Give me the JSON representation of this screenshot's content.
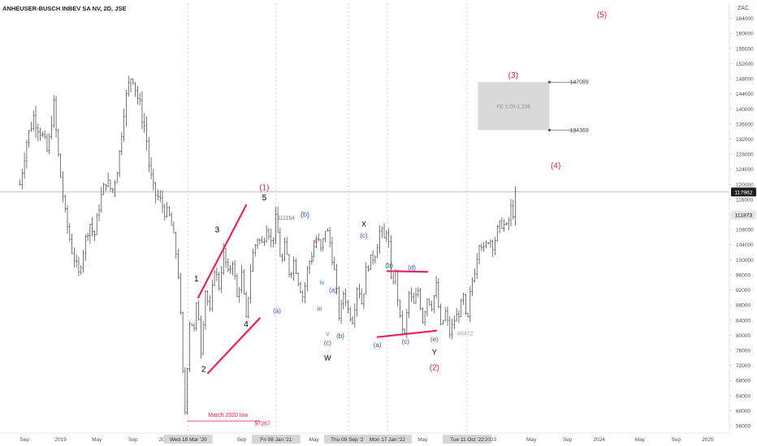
{
  "header": {
    "symbol_line": "ANHEUSER-BUSCH INBEV SA NV, 2D, JSE"
  },
  "y_axis": {
    "currency": "ZAC",
    "ticks": [
      56000,
      60000,
      64000,
      68000,
      72000,
      76000,
      80000,
      84000,
      88000,
      92000,
      96000,
      100000,
      104000,
      108000,
      112000,
      116000,
      120000,
      124000,
      128000,
      132000,
      136000,
      140000,
      144000,
      148000,
      152000,
      156000,
      160000,
      164000
    ]
  },
  "price_tags": {
    "last": {
      "label": "117962",
      "value": 117962
    },
    "secondary": {
      "label": "111873",
      "value": 111873
    }
  },
  "x_axis": {
    "labels": [
      {
        "text": "Sep",
        "t": 0.5,
        "highlight": false
      },
      {
        "text": "2019",
        "t": 4.5,
        "highlight": false
      },
      {
        "text": "May",
        "t": 8.5,
        "highlight": false
      },
      {
        "text": "Sep",
        "t": 12.5,
        "highlight": false
      },
      {
        "text": "2020",
        "t": 16.0,
        "highlight": false
      },
      {
        "text": "Wed 18 Mar '20",
        "t": 18.6,
        "highlight": true
      },
      {
        "text": "Sep",
        "t": 24.5,
        "highlight": false
      },
      {
        "text": "Fri 08 Jan '21",
        "t": 28.3,
        "highlight": true
      },
      {
        "text": "May",
        "t": 32.5,
        "highlight": false
      },
      {
        "text": "Thu 09 Sep '21",
        "t": 36.3,
        "highlight": true
      },
      {
        "text": "Mon 17 Jan '22",
        "t": 40.6,
        "highlight": true
      },
      {
        "text": "May",
        "t": 44.5,
        "highlight": false
      },
      {
        "text": "Tue 11 Oct '22",
        "t": 49.4,
        "highlight": true
      },
      {
        "text": "2023",
        "t": 52.0,
        "highlight": false
      },
      {
        "text": "May",
        "t": 56.5,
        "highlight": false
      },
      {
        "text": "Sep",
        "t": 60.5,
        "highlight": false
      },
      {
        "text": "2024",
        "t": 64.0,
        "highlight": false
      },
      {
        "text": "May",
        "t": 68.5,
        "highlight": false
      },
      {
        "text": "Sep",
        "t": 72.5,
        "highlight": false
      },
      {
        "text": "2025",
        "t": 76.0,
        "highlight": false
      }
    ]
  },
  "chart_data": {
    "type": "line",
    "title": "ANHEUSER-BUSCH INBEV SA NV, 2D, JSE",
    "x_unit": "months since Sep 2018 (axis labels: Sep, 2019, May, Sep, 2020 ... 2025)",
    "y_unit": "ZAC",
    "ylim": [
      54500,
      168000
    ],
    "grid": false,
    "series": [
      {
        "name": "price",
        "x": [
          0,
          0.7,
          1.5,
          2.3,
          3.1,
          3.7,
          4.3,
          5.0,
          5.7,
          6.5,
          7.1,
          7.7,
          8.2,
          8.8,
          9.5,
          10.2,
          10.9,
          11.5,
          12.0,
          12.4,
          12.9,
          13.3,
          13.9,
          14.3,
          14.8,
          15.4,
          16.0,
          16.6,
          17.2,
          17.6,
          17.9,
          18.2,
          18.5,
          18.8,
          19.2,
          19.6,
          20.0,
          20.5,
          21.0,
          21.5,
          22.0,
          22.5,
          23.0,
          23.5,
          24.0,
          24.5,
          25.0,
          25.6,
          26.2,
          26.8,
          27.3,
          27.8,
          28.3,
          28.6,
          28.9,
          29.3,
          29.8,
          30.3,
          30.8,
          31.3,
          31.8,
          32.3,
          32.8,
          33.3,
          33.8,
          34.3,
          34.8,
          35.3,
          35.8,
          36.3,
          36.8,
          37.3,
          37.8,
          38.3,
          38.8,
          39.3,
          39.8,
          40.3,
          40.6,
          41.0,
          41.5,
          42.0,
          42.5,
          43.0,
          43.5,
          44.0,
          44.5,
          45.0,
          45.5,
          46.0,
          46.5,
          47.0,
          47.5,
          48.0,
          48.5,
          49.0,
          49.4,
          49.8,
          50.3,
          50.8,
          51.3,
          51.8,
          52.3,
          52.8,
          53.3,
          53.8,
          54.3,
          54.6,
          54.8
        ],
        "values": [
          120000,
          131000,
          138000,
          134000,
          128000,
          142000,
          126000,
          112000,
          103000,
          96000,
          104000,
          110000,
          106000,
          115000,
          121000,
          118000,
          126000,
          140000,
          146000,
          150000,
          144000,
          140000,
          134000,
          124000,
          118000,
          116000,
          113000,
          111000,
          103000,
          94000,
          76000,
          57267,
          72000,
          86000,
          80000,
          90000,
          76000,
          92000,
          86000,
          98000,
          93000,
          102000,
          96000,
          100000,
          90000,
          96000,
          84000,
          100000,
          106000,
          104000,
          110000,
          104000,
          111164,
          105000,
          98000,
          104000,
          96000,
          100000,
          94000,
          90000,
          98000,
          102000,
          106000,
          102000,
          109000,
          104000,
          96000,
          84000,
          92000,
          86000,
          84000,
          94000,
          88000,
          98000,
          100000,
          102000,
          108000,
          105000,
          110000,
          94000,
          96000,
          84000,
          80000,
          91000,
          88000,
          92000,
          84000,
          90000,
          88000,
          93000,
          82000,
          86000,
          80472,
          84000,
          86000,
          90000,
          81500,
          92000,
          98000,
          106000,
          102000,
          106000,
          104000,
          108000,
          110000,
          108000,
          114000,
          112000,
          117962
        ]
      }
    ],
    "horizontal_price_line": 117962,
    "annotations": [
      {
        "text": "1",
        "x": 19.5,
        "y": 95000,
        "color": "#000000",
        "size": 10
      },
      {
        "text": "2",
        "x": 20.3,
        "y": 71000,
        "color": "#000000",
        "size": 10
      },
      {
        "text": "3",
        "x": 21.8,
        "y": 108000,
        "color": "#000000",
        "size": 10
      },
      {
        "text": "4",
        "x": 25.0,
        "y": 83000,
        "color": "#000000",
        "size": 10
      },
      {
        "text": "5",
        "x": 27.0,
        "y": 116500,
        "color": "#000000",
        "size": 10
      },
      {
        "text": "(1)",
        "x": 27.0,
        "y": 119200,
        "color": "#e01e4a",
        "size": 10
      },
      {
        "text": "111164",
        "x": 29.4,
        "y": 111164,
        "color": "#7a7a7a",
        "size": 7
      },
      {
        "text": "(b)",
        "x": 31.5,
        "y": 112000,
        "color": "#2855a8",
        "size": 9
      },
      {
        "text": "ii",
        "x": 32.7,
        "y": 105000,
        "color": "#c0392b",
        "size": 8
      },
      {
        "text": "i",
        "x": 32.4,
        "y": 100000,
        "color": "#c0392b",
        "size": 8
      },
      {
        "text": "iv",
        "x": 33.4,
        "y": 94000,
        "color": "#4a90e2",
        "size": 8
      },
      {
        "text": "(a)",
        "x": 28.4,
        "y": 86500,
        "color": "#2855a8",
        "size": 8
      },
      {
        "text": "(a)",
        "x": 34.6,
        "y": 92000,
        "color": "#2855a8",
        "size": 8
      },
      {
        "text": "iii",
        "x": 33.1,
        "y": 87000,
        "color": "#c0392b",
        "size": 8
      },
      {
        "text": "v",
        "x": 34.0,
        "y": 80500,
        "color": "#4a90e2",
        "size": 8
      },
      {
        "text": "(b)",
        "x": 35.4,
        "y": 79800,
        "color": "#2855a8",
        "size": 8
      },
      {
        "text": "(c)",
        "x": 34.0,
        "y": 78000,
        "color": "#2855a8",
        "size": 8
      },
      {
        "text": "W",
        "x": 34.0,
        "y": 74000,
        "color": "#000000",
        "size": 9
      },
      {
        "text": "X",
        "x": 38.0,
        "y": 109500,
        "color": "#000000",
        "size": 9
      },
      {
        "text": "(c)",
        "x": 38.0,
        "y": 106500,
        "color": "#2855a8",
        "size": 8
      },
      {
        "text": "(b)",
        "x": 40.8,
        "y": 98500,
        "color": "#2855a8",
        "size": 8
      },
      {
        "text": "(d)",
        "x": 43.3,
        "y": 98000,
        "color": "#2855a8",
        "size": 8
      },
      {
        "text": "(a)",
        "x": 39.5,
        "y": 77500,
        "color": "#2855a8",
        "size": 8
      },
      {
        "text": "(c)",
        "x": 42.6,
        "y": 78300,
        "color": "#2855a8",
        "size": 8
      },
      {
        "text": "(e)",
        "x": 45.8,
        "y": 79000,
        "color": "#2855a8",
        "size": 8
      },
      {
        "text": "Y",
        "x": 45.8,
        "y": 75500,
        "color": "#000000",
        "size": 9
      },
      {
        "text": "(2)",
        "x": 45.8,
        "y": 71500,
        "color": "#e01e4a",
        "size": 10
      },
      {
        "text": "80472",
        "x": 49.2,
        "y": 80472,
        "color": "#9e9e9e",
        "size": 7
      },
      {
        "text": "March 2020 low",
        "x": 23.0,
        "y": 58900,
        "color": "#e01e4a",
        "size": 7
      },
      {
        "text": "57267",
        "x": 26.8,
        "y": 56600,
        "color": "#e01e4a",
        "size": 7
      },
      {
        "text": "(3)",
        "x": 54.5,
        "y": 149000,
        "color": "#e01e4a",
        "size": 10
      },
      {
        "text": "147089",
        "x": 61.8,
        "y": 147089,
        "color": "#444444",
        "size": 7
      },
      {
        "text": "134369",
        "x": 61.8,
        "y": 134369,
        "color": "#444444",
        "size": 7
      },
      {
        "text": "(4)",
        "x": 59.2,
        "y": 125000,
        "color": "#e01e4a",
        "size": 10
      },
      {
        "text": "(5)",
        "x": 64.3,
        "y": 165000,
        "color": "#e01e4a",
        "size": 10
      }
    ],
    "fib_box": {
      "label": "FE 1.00-1.236",
      "x0": 50.6,
      "x1": 58.5,
      "y_top": 147089,
      "y_bottom": 134369,
      "fill": "#d9d9d9"
    },
    "trendlines": [
      {
        "name": "wedge-upper",
        "x0": 19.7,
        "y0": 90000,
        "x1": 25.0,
        "y1": 114500,
        "color": "#e8265e"
      },
      {
        "name": "wedge-lower",
        "x0": 20.8,
        "y0": 70000,
        "x1": 26.5,
        "y1": 84500,
        "color": "#e8265e"
      },
      {
        "name": "triangle-upper",
        "x0": 40.6,
        "y0": 97000,
        "x1": 45.0,
        "y1": 96800,
        "color": "#e8265e"
      },
      {
        "name": "triangle-lower",
        "x0": 39.5,
        "y0": 79500,
        "x1": 46.0,
        "y1": 81200,
        "color": "#e8265e"
      }
    ],
    "colors": {
      "bars": "#3a3a3a",
      "wave_red": "#e01e4a",
      "wave_blue": "#2855a8",
      "trend": "#e8265e"
    }
  }
}
